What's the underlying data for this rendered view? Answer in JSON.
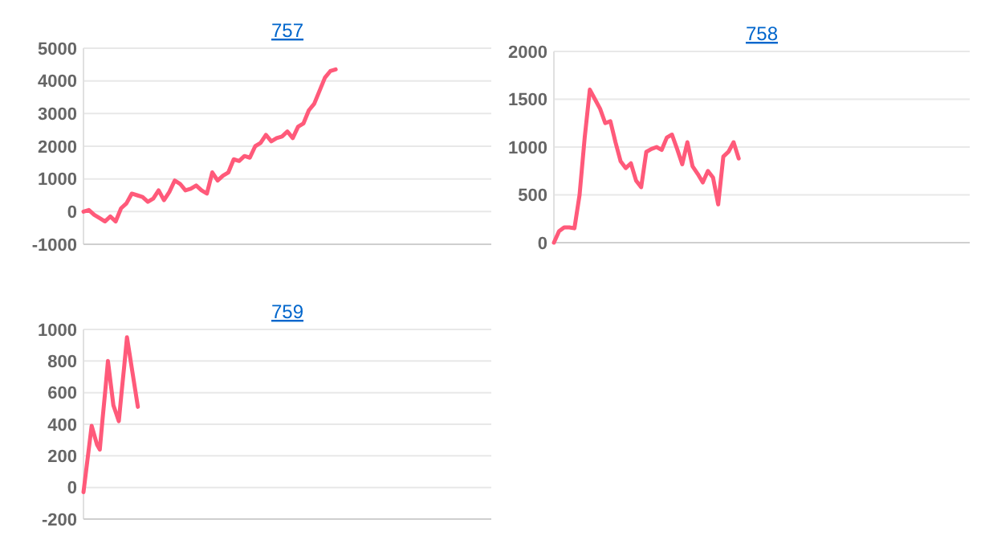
{
  "chart_data": [
    {
      "type": "line",
      "title": "757",
      "categories": [
        null,
        null,
        null,
        null,
        null,
        null,
        null,
        null,
        null,
        null,
        null,
        null,
        null,
        null,
        null,
        null,
        null,
        null,
        null,
        null,
        null,
        null,
        null,
        null,
        null,
        null,
        null,
        null,
        null,
        null,
        null,
        null,
        null,
        null,
        null,
        null,
        null,
        null,
        null,
        null,
        null,
        null,
        null,
        null,
        null,
        null,
        null,
        null,
        null,
        null,
        null,
        null,
        null,
        null,
        null,
        null,
        null,
        null,
        null,
        null,
        null,
        null,
        null,
        null,
        null,
        null,
        null,
        null,
        null,
        null,
        null,
        null,
        null,
        null,
        null,
        null,
        null
      ],
      "series": [
        {
          "color": "#ff5a7a",
          "values": [
            0,
            50,
            -100,
            -200,
            -300,
            -150,
            -300,
            100,
            250,
            550,
            500,
            450,
            300,
            400,
            650,
            350,
            600,
            950,
            850,
            650,
            700,
            800,
            650,
            550,
            1200,
            950,
            1100,
            1200,
            1600,
            1550,
            1700,
            1650,
            2000,
            2100,
            2350,
            2150,
            2250,
            2300,
            2450,
            2250,
            2600,
            2700,
            3100,
            3300,
            3700,
            4100,
            4300,
            4350,
            null,
            null,
            null,
            null,
            null,
            null,
            null,
            null,
            null,
            null,
            null,
            null,
            null,
            null,
            null,
            null,
            null,
            null,
            null,
            null,
            null,
            null,
            null,
            null,
            null,
            null,
            null,
            null,
            null
          ]
        }
      ],
      "ylim": [
        -1000,
        5000
      ],
      "yticks": [
        -1000,
        0,
        1000,
        2000,
        3000,
        4000,
        5000
      ],
      "grid": "y",
      "tick_labels": "y"
    },
    {
      "type": "line",
      "title": "758",
      "categories": [
        null,
        null,
        null,
        null,
        null,
        null,
        null,
        null,
        null,
        null,
        null,
        null,
        null,
        null,
        null,
        null,
        null,
        null,
        null,
        null,
        null,
        null,
        null,
        null,
        null,
        null,
        null,
        null,
        null,
        null,
        null,
        null,
        null,
        null,
        null,
        null,
        null,
        null,
        null,
        null,
        null,
        null,
        null,
        null,
        null,
        null,
        null,
        null,
        null,
        null,
        null,
        null,
        null,
        null,
        null,
        null,
        null,
        null,
        null,
        null,
        null,
        null,
        null,
        null,
        null,
        null,
        null,
        null,
        null,
        null,
        null,
        null,
        null,
        null,
        null,
        null,
        null,
        null,
        null,
        null,
        null,
        null
      ],
      "series": [
        {
          "color": "#ff5a7a",
          "values": [
            0,
            120,
            160,
            160,
            150,
            500,
            1100,
            1600,
            1500,
            1400,
            1250,
            1270,
            1050,
            850,
            780,
            830,
            650,
            580,
            950,
            980,
            1000,
            970,
            1100,
            1130,
            980,
            820,
            1050,
            800,
            720,
            630,
            750,
            680,
            400,
            900,
            950,
            1050,
            880,
            null,
            null,
            null,
            null,
            null,
            null,
            null,
            null,
            null,
            null,
            null,
            null,
            null,
            null,
            null,
            null,
            null,
            null,
            null,
            null,
            null,
            null,
            null,
            null,
            null,
            null,
            null,
            null,
            null,
            null,
            null,
            null,
            null,
            null,
            null,
            null,
            null,
            null,
            null,
            null,
            null,
            null,
            null,
            null,
            null
          ]
        }
      ],
      "ylim": [
        0,
        2000
      ],
      "yticks": [
        0,
        500,
        1000,
        1500,
        2000
      ],
      "grid": "y",
      "tick_labels": "y"
    },
    {
      "type": "line",
      "title": "759",
      "categories": [
        null,
        null,
        null,
        null,
        null,
        null,
        null,
        null,
        null,
        null,
        null,
        null,
        null,
        null,
        null,
        null,
        null,
        null,
        null,
        null,
        null,
        null,
        null,
        null,
        null,
        null,
        null,
        null,
        null,
        null,
        null,
        null,
        null,
        null,
        null,
        null,
        null,
        null,
        null,
        null,
        null,
        null,
        null,
        null,
        null,
        null,
        null,
        null,
        null,
        null,
        null,
        null,
        null,
        null,
        null,
        null,
        null,
        null,
        null,
        null,
        null,
        null,
        null,
        null,
        null,
        null,
        null,
        null,
        null,
        null,
        null,
        null,
        null,
        null,
        null,
        null,
        null,
        null,
        null,
        null,
        null,
        null,
        null,
        null,
        null,
        null,
        null,
        null,
        null,
        null,
        null,
        null,
        null,
        null,
        null,
        null,
        null,
        null,
        null,
        null,
        null,
        null,
        null,
        null,
        null,
        null,
        null,
        null,
        null,
        null,
        null,
        null,
        null,
        null,
        null,
        null,
        null,
        null,
        null,
        null,
        null,
        null,
        null,
        null,
        null,
        null,
        null,
        null,
        null,
        null,
        null,
        null,
        null,
        null,
        null,
        null,
        null,
        null,
        null,
        null,
        null,
        null,
        null,
        null,
        null,
        null,
        null,
        null,
        null,
        null,
        null
      ],
      "series": [
        {
          "color": "#ff5a7a",
          "values": [
            -30,
            110,
            250,
            390,
            330,
            270,
            240,
            430,
            610,
            800,
            660,
            520,
            470,
            420,
            600,
            770,
            950,
            840,
            730,
            620,
            510,
            null,
            null,
            null,
            null,
            null,
            null,
            null,
            null,
            null,
            null,
            null,
            null,
            null,
            null,
            null,
            null,
            null,
            null,
            null,
            null,
            null,
            null,
            null,
            null,
            null,
            null,
            null,
            null,
            null,
            null,
            null,
            null,
            null,
            null,
            null,
            null,
            null,
            null,
            null,
            null,
            null,
            null,
            null,
            null,
            null,
            null,
            null,
            null,
            null,
            null,
            null,
            null,
            null,
            null,
            null,
            null,
            null,
            null,
            null,
            null,
            null,
            null,
            null,
            null,
            null,
            null,
            null,
            null,
            null,
            null,
            null,
            null,
            null,
            null,
            null,
            null,
            null,
            null,
            null,
            null,
            null,
            null,
            null,
            null,
            null,
            null,
            null,
            null,
            null,
            null,
            null,
            null,
            null,
            null,
            null,
            null,
            null,
            null,
            null,
            null,
            null,
            null,
            null,
            null,
            null,
            null,
            null,
            null,
            null,
            null,
            null,
            null,
            null,
            null,
            null,
            null,
            null,
            null,
            null,
            null,
            null,
            null,
            null,
            null,
            null,
            null,
            null,
            null,
            null,
            null
          ]
        }
      ],
      "ylim": [
        -200,
        1000
      ],
      "yticks": [
        -200,
        0,
        200,
        400,
        600,
        800,
        1000
      ],
      "grid": "y",
      "tick_labels": "y"
    }
  ]
}
